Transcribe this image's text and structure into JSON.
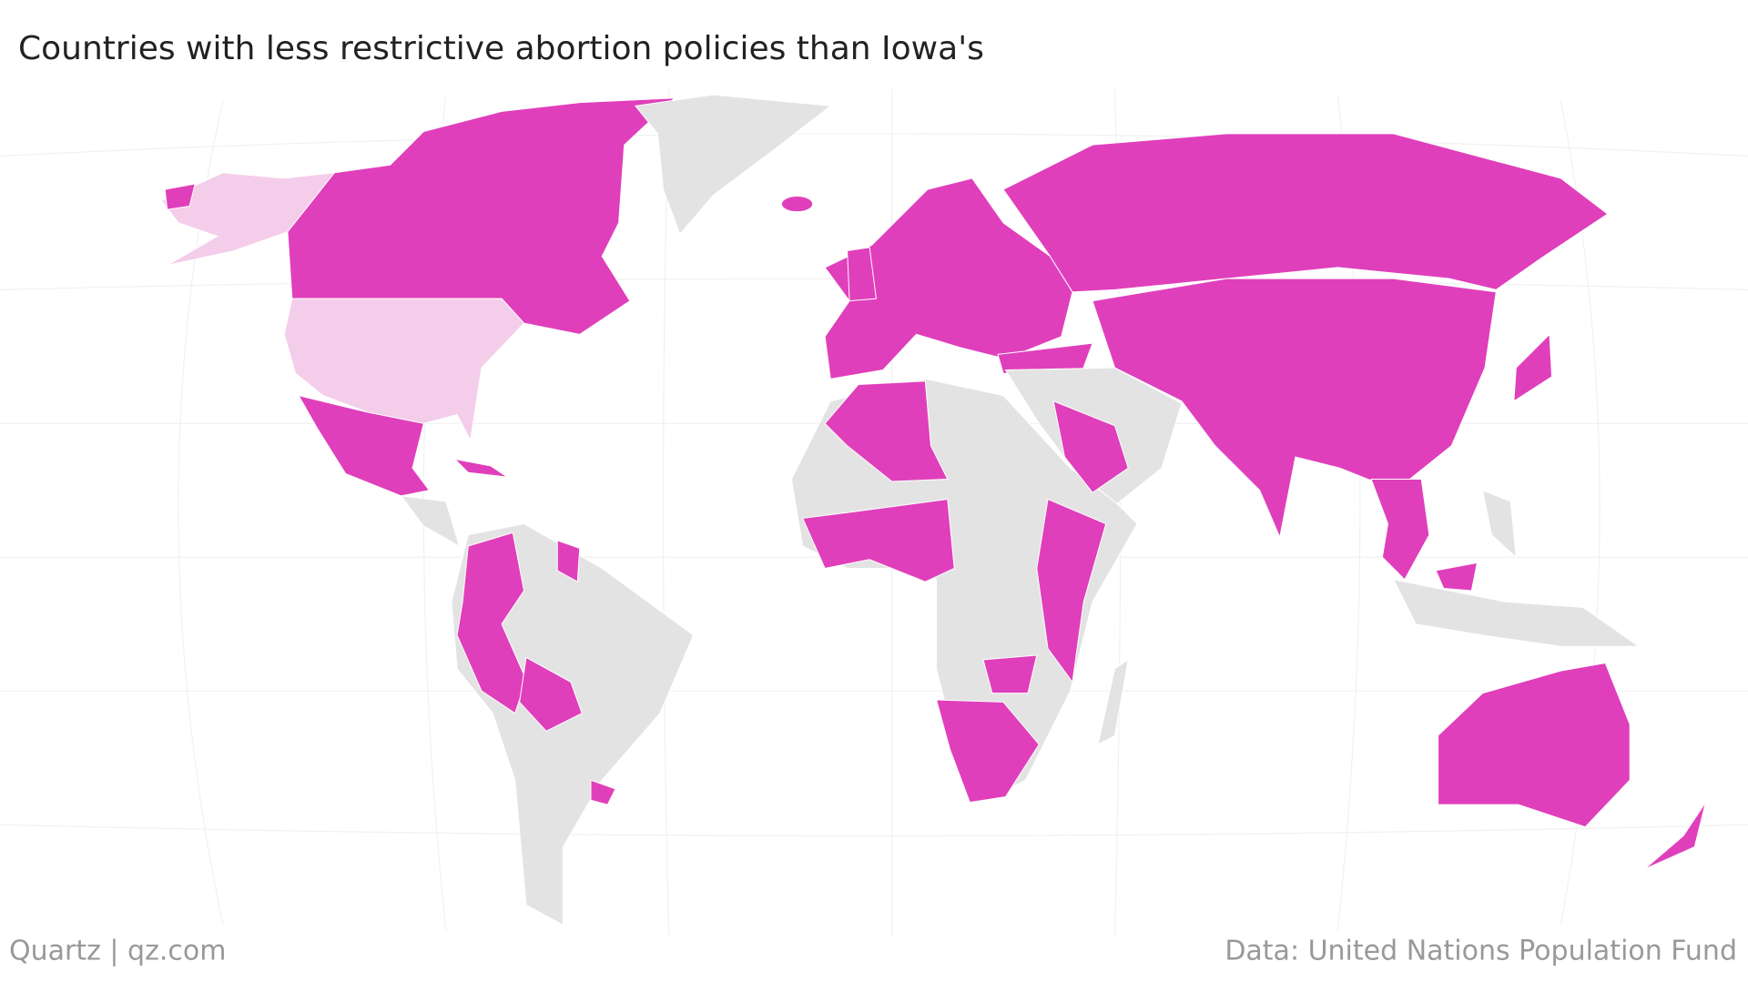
{
  "title": "Countries with less restrictive abortion policies than Iowa's",
  "credit": "Quartz | qz.com",
  "source": "Data: United Nations Population Fund"
}
